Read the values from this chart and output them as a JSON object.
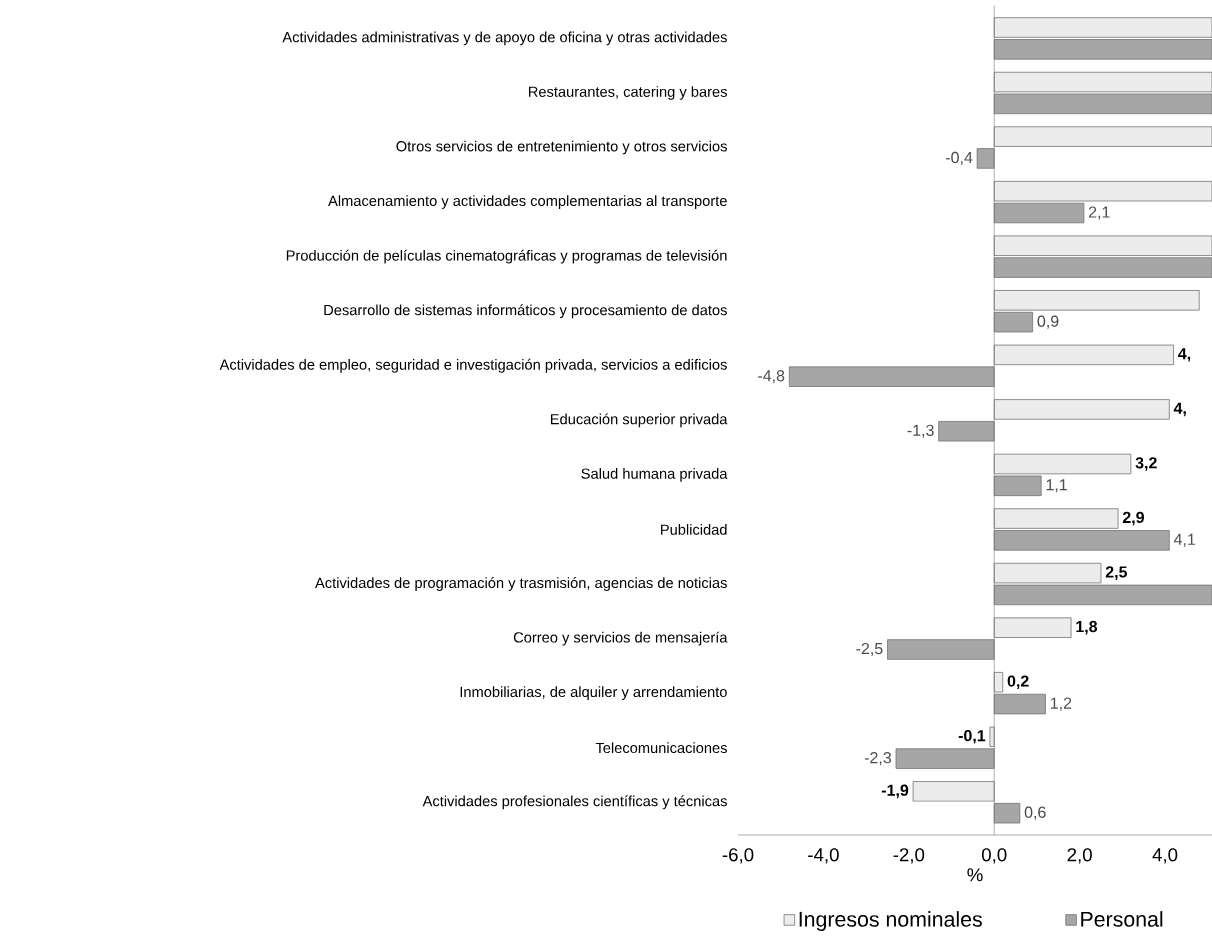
{
  "chart_data": {
    "type": "bar",
    "orientation": "horizontal",
    "xlabel": "%",
    "categories": [
      "Actividades administrativas y de apoyo de oficina y otras actividades",
      "Restaurantes, catering y bares",
      "Otros servicios de entretenimiento y otros servicios",
      "Almacenamiento y actividades complementarias al transporte",
      "Producción de películas cinematográficas y programas de televisión",
      "Desarrollo de sistemas informáticos y procesamiento de datos",
      "Actividades de empleo, seguridad e investigación privada, servicios a edificios",
      "Educación superior privada",
      "Salud humana privada",
      "Publicidad",
      "Actividades de programación y trasmisión, agencias de noticias",
      "Correo y servicios de mensajería",
      "Inmobiliarias, de alquiler y arrendamiento",
      "Telecomunicaciones",
      "Actividades profesionales científicas y técnicas"
    ],
    "series": [
      {
        "name": "Ingresos nominales",
        "color": "#ececec",
        "values": [
          5.1,
          5.1,
          5.1,
          5.1,
          5.1,
          4.8,
          4.2,
          4.1,
          3.2,
          2.9,
          2.5,
          1.8,
          0.2,
          -0.1,
          -1.9
        ],
        "value_labels": [
          null,
          null,
          null,
          null,
          null,
          null,
          "4,",
          "4,",
          "3,2",
          "2,9",
          "2,5",
          "1,8",
          "0,2",
          "-0,1",
          "-1,9"
        ]
      },
      {
        "name": "Personal",
        "color": "#a6a6a6",
        "values": [
          5.1,
          5.1,
          -0.4,
          2.1,
          5.1,
          0.9,
          -4.8,
          -1.3,
          1.1,
          4.1,
          5.1,
          -2.5,
          1.2,
          -2.3,
          0.6
        ],
        "value_labels": [
          null,
          null,
          "-0,4",
          "2,1",
          null,
          "0,9",
          "-4,8",
          "-1,3",
          "1,1",
          "4,1",
          null,
          "-2,5",
          "1,2",
          "-2,3",
          "0,6"
        ]
      }
    ],
    "xlim": [
      -6,
      5.1
    ],
    "xticks": [
      {
        "value": -6,
        "label": "-6,0"
      },
      {
        "value": -4,
        "label": "-4,0"
      },
      {
        "value": -2,
        "label": "-2,0"
      },
      {
        "value": 0,
        "label": "0,0"
      },
      {
        "value": 2,
        "label": "2,0"
      },
      {
        "value": 4,
        "label": "4,0"
      }
    ],
    "legend": "bottom"
  }
}
